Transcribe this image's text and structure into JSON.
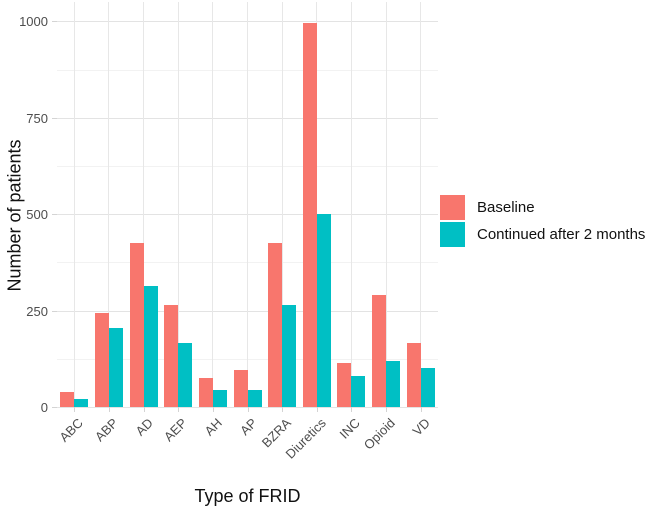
{
  "chart_data": {
    "type": "bar",
    "title": "",
    "xlabel": "Type of FRID",
    "ylabel": "Number of patients",
    "categories": [
      "ABC",
      "ABP",
      "AD",
      "AEP",
      "AH",
      "AP",
      "BZRA",
      "Diuretics",
      "INC",
      "Opioid",
      "VD"
    ],
    "series": [
      {
        "name": "Baseline",
        "color": "#F8766D",
        "values": [
          40,
          245,
          425,
          265,
          75,
          95,
          425,
          995,
          115,
          290,
          165
        ]
      },
      {
        "name": "Continued after 2 months",
        "color": "#00BFC4",
        "values": [
          20,
          205,
          315,
          165,
          45,
          45,
          265,
          500,
          80,
          120,
          100
        ]
      }
    ],
    "y_ticks": [
      0,
      250,
      500,
      750,
      1000
    ],
    "y_minor_ticks": [
      125,
      375,
      625,
      875
    ],
    "ylim": [
      0,
      1050
    ],
    "grid": "major-and-minor",
    "legend_position": "right",
    "bar_mode": "dodged"
  },
  "colors": {
    "background": "#ffffff",
    "major_grid": "#e3e3e3",
    "minor_grid": "#f2f2f2",
    "tick_mark": "#d4d4d4",
    "tick_text": "#4d4d4d",
    "title_text": "#111111"
  }
}
